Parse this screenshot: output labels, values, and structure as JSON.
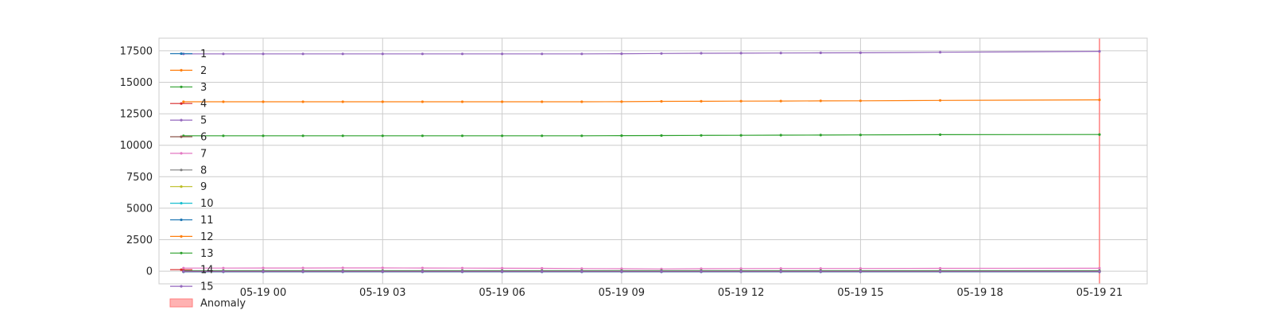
{
  "chart_data": {
    "type": "line",
    "title": "",
    "xlabel": "",
    "ylabel": "",
    "x": [
      "05-18 22:00",
      "05-18 23:00",
      "05-19 00:00",
      "05-19 01:00",
      "05-19 02:00",
      "05-19 03:00",
      "05-19 04:00",
      "05-19 05:00",
      "05-19 06:00",
      "05-19 07:00",
      "05-19 08:00",
      "05-19 09:00",
      "05-19 10:00",
      "05-19 11:00",
      "05-19 12:00",
      "05-19 13:00",
      "05-19 14:00",
      "05-19 15:00",
      "05-19 17:00",
      "05-19 21:00"
    ],
    "x_ticks": [
      "05-19 00",
      "05-19 03",
      "05-19 06",
      "05-19 09",
      "05-19 12",
      "05-19 15",
      "05-19 18",
      "05-19 21"
    ],
    "ylim": [
      -1000,
      18500
    ],
    "y_ticks": [
      0,
      2500,
      5000,
      7500,
      10000,
      12500,
      15000,
      17500
    ],
    "grid": true,
    "legend_position": "left",
    "series": [
      {
        "name": "1",
        "color": "#1f77b4",
        "values": [
          -50,
          -50,
          -50,
          -50,
          -50,
          -50,
          -50,
          -50,
          -50,
          -50,
          -50,
          -50,
          -50,
          -50,
          -50,
          -50,
          -50,
          -50,
          -50,
          -50
        ]
      },
      {
        "name": "2",
        "color": "#ff7f0e",
        "values": [
          13450,
          13450,
          13450,
          13450,
          13450,
          13450,
          13450,
          13450,
          13450,
          13450,
          13450,
          13460,
          13480,
          13490,
          13500,
          13510,
          13520,
          13530,
          13560,
          13600
        ]
      },
      {
        "name": "3",
        "color": "#2ca02c",
        "values": [
          10750,
          10750,
          10750,
          10750,
          10750,
          10750,
          10750,
          10750,
          10750,
          10750,
          10750,
          10760,
          10770,
          10780,
          10790,
          10800,
          10810,
          10820,
          10840,
          10850
        ]
      },
      {
        "name": "4",
        "color": "#d62728",
        "values": [
          -20,
          -20,
          -20,
          -20,
          -20,
          -20,
          -20,
          -20,
          -20,
          -20,
          -20,
          -20,
          -20,
          -20,
          -20,
          -20,
          -20,
          -20,
          -20,
          -20
        ]
      },
      {
        "name": "5",
        "color": "#9467bd",
        "values": [
          17250,
          17250,
          17250,
          17250,
          17250,
          17250,
          17250,
          17250,
          17250,
          17250,
          17250,
          17260,
          17280,
          17300,
          17310,
          17320,
          17330,
          17340,
          17380,
          17450
        ]
      },
      {
        "name": "6",
        "color": "#8c564b",
        "values": [
          0,
          0,
          0,
          0,
          0,
          0,
          0,
          0,
          0,
          0,
          0,
          0,
          0,
          0,
          0,
          0,
          0,
          0,
          0,
          0
        ]
      },
      {
        "name": "7",
        "color": "#e377c2",
        "values": [
          250,
          250,
          255,
          255,
          260,
          260,
          255,
          250,
          240,
          230,
          210,
          200,
          180,
          200,
          210,
          215,
          215,
          220,
          230,
          240
        ]
      },
      {
        "name": "8",
        "color": "#7f7f7f",
        "values": [
          10,
          10,
          10,
          10,
          10,
          10,
          10,
          10,
          10,
          10,
          10,
          10,
          10,
          10,
          10,
          10,
          10,
          10,
          10,
          10
        ]
      },
      {
        "name": "9",
        "color": "#bcbd22",
        "values": [
          20,
          20,
          20,
          20,
          20,
          20,
          20,
          20,
          20,
          20,
          20,
          20,
          20,
          20,
          20,
          20,
          20,
          20,
          20,
          20
        ]
      },
      {
        "name": "10",
        "color": "#17becf",
        "values": [
          5,
          5,
          5,
          5,
          5,
          5,
          5,
          5,
          5,
          5,
          5,
          5,
          5,
          5,
          5,
          5,
          5,
          5,
          5,
          5
        ]
      },
      {
        "name": "11",
        "color": "#1f77b4",
        "values": [
          -30,
          -30,
          -30,
          -30,
          -30,
          -30,
          -30,
          -30,
          -30,
          -30,
          -30,
          -30,
          -30,
          -30,
          -30,
          -30,
          -30,
          -30,
          -30,
          -30
        ]
      },
      {
        "name": "12",
        "color": "#ff7f0e",
        "values": [
          30,
          30,
          30,
          30,
          30,
          30,
          30,
          30,
          30,
          30,
          30,
          30,
          30,
          30,
          30,
          30,
          30,
          30,
          30,
          30
        ]
      },
      {
        "name": "13",
        "color": "#2ca02c",
        "values": [
          40,
          40,
          40,
          40,
          40,
          40,
          40,
          40,
          40,
          40,
          40,
          40,
          40,
          40,
          40,
          40,
          40,
          40,
          40,
          40
        ]
      },
      {
        "name": "14",
        "color": "#d62728",
        "values": [
          -10,
          -10,
          -10,
          -10,
          -10,
          -10,
          -10,
          -10,
          -10,
          -10,
          -10,
          -10,
          -10,
          -10,
          -10,
          -10,
          -10,
          -10,
          -10,
          -10
        ]
      },
      {
        "name": "15",
        "color": "#9467bd",
        "values": [
          0,
          0,
          0,
          0,
          0,
          0,
          0,
          0,
          0,
          0,
          0,
          0,
          0,
          0,
          0,
          0,
          0,
          0,
          0,
          0
        ]
      }
    ],
    "anomaly": {
      "label": "Anomaly",
      "x": "05-19 21:00",
      "color": "#ff7f7f"
    }
  }
}
